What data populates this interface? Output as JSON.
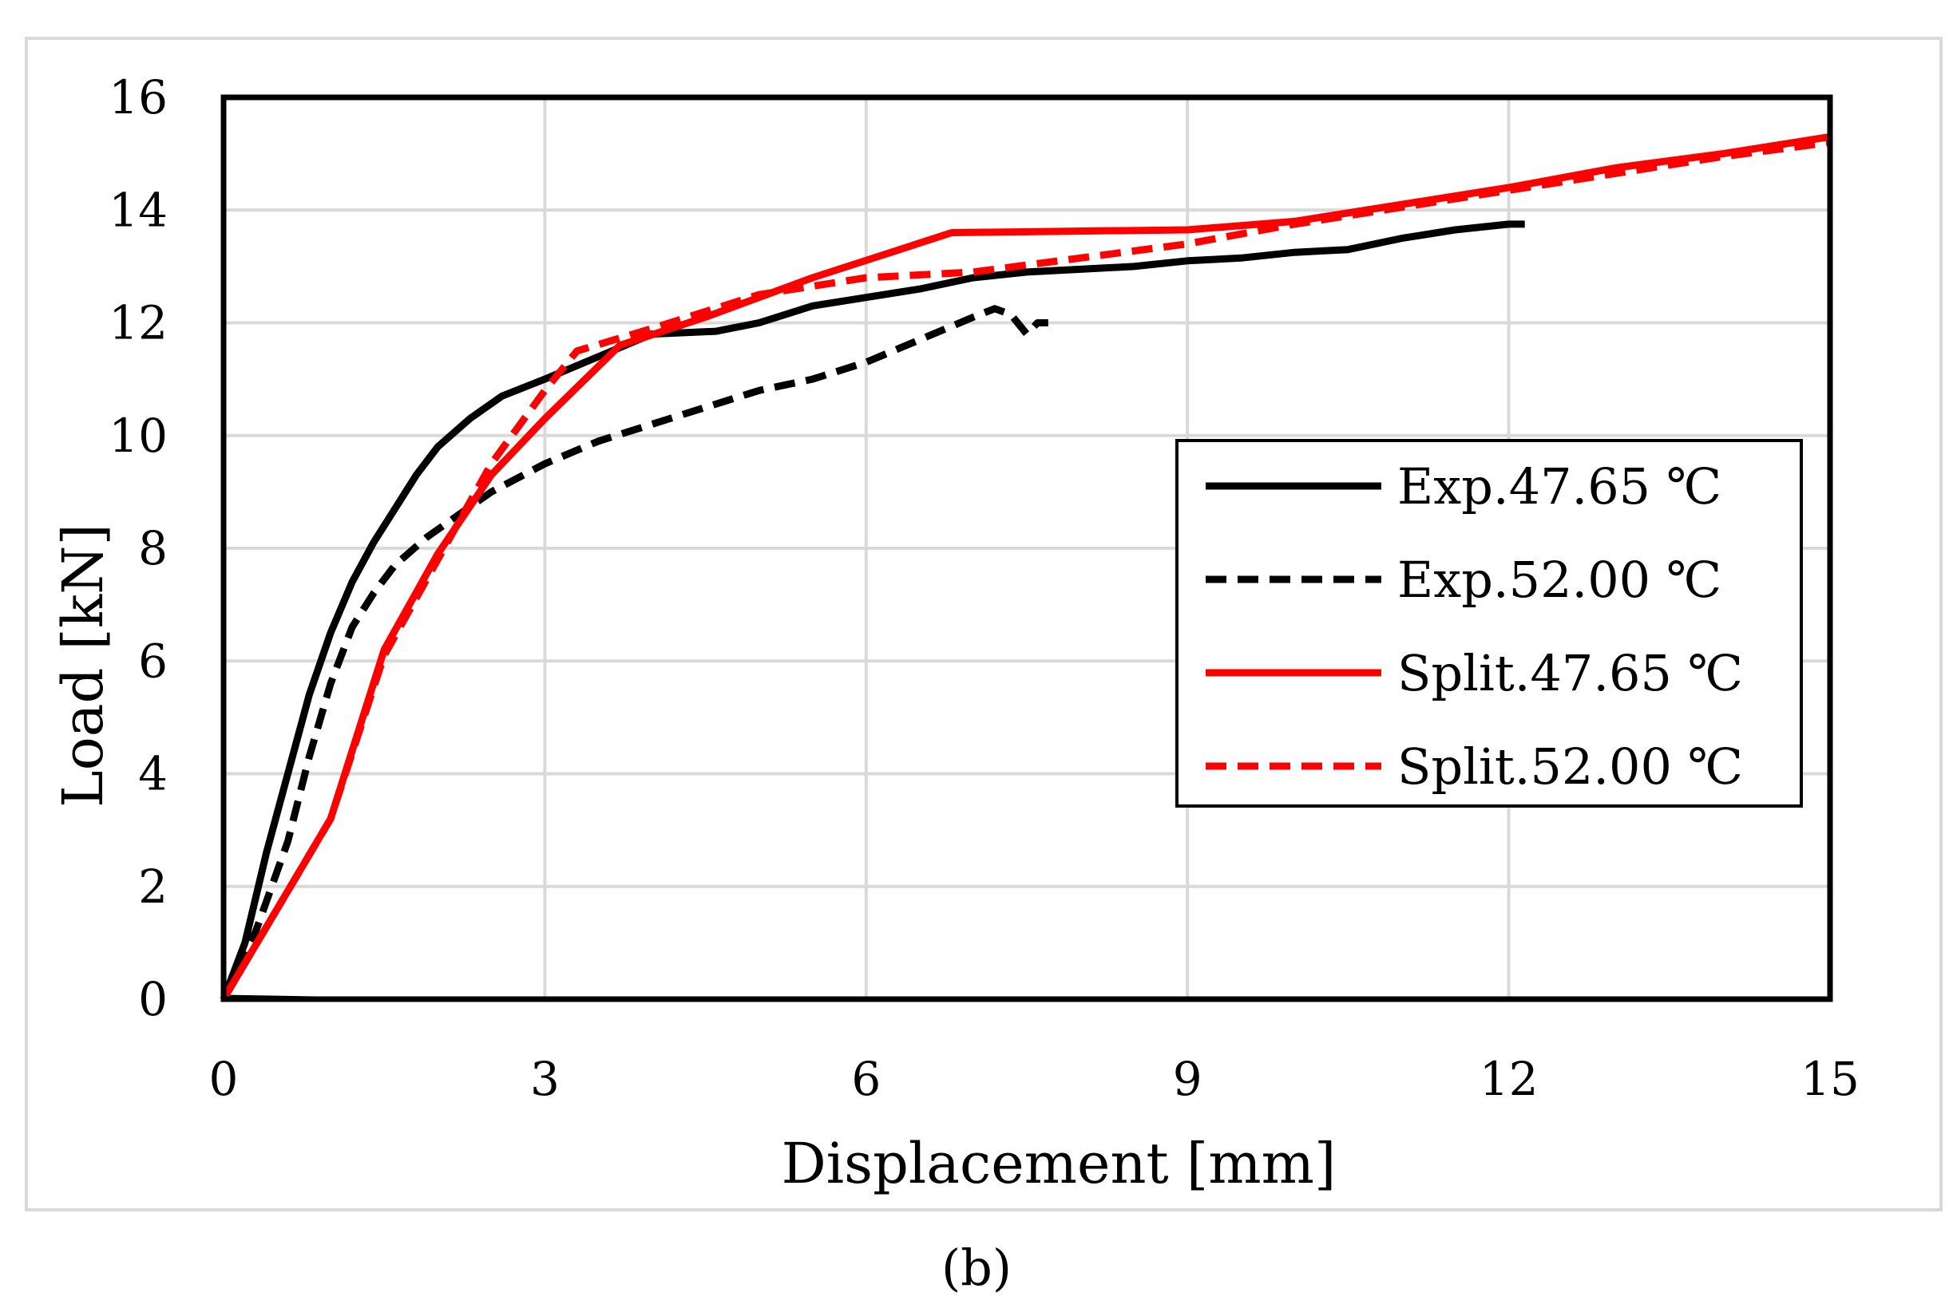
{
  "chart_data": {
    "type": "line",
    "title": "",
    "xlabel": "Displacement [mm]",
    "ylabel": "Load [kN]",
    "xlim": [
      0,
      15
    ],
    "ylim": [
      0,
      16
    ],
    "x_ticks": [
      0,
      3,
      6,
      9,
      12,
      15
    ],
    "y_ticks": [
      0,
      2,
      4,
      6,
      8,
      10,
      12,
      14,
      16
    ],
    "x_tick_labels": [
      "0",
      "3",
      "6",
      "9",
      "12",
      "15"
    ],
    "y_tick_labels": [
      "0",
      "2",
      "4",
      "6",
      "8",
      "10",
      "12",
      "14",
      "16"
    ],
    "grid": true,
    "legend_position": "right",
    "panel_label": "(b)",
    "series": [
      {
        "name": "Exp.47.65 ℃",
        "color": "#000000",
        "dash": "solid",
        "points": [
          [
            0,
            0
          ],
          [
            0.2,
            1.0
          ],
          [
            0.4,
            2.6
          ],
          [
            0.6,
            4.0
          ],
          [
            0.8,
            5.4
          ],
          [
            1.0,
            6.5
          ],
          [
            1.2,
            7.4
          ],
          [
            1.4,
            8.1
          ],
          [
            1.6,
            8.7
          ],
          [
            1.8,
            9.3
          ],
          [
            2.0,
            9.8
          ],
          [
            2.3,
            10.3
          ],
          [
            2.6,
            10.7
          ],
          [
            3.0,
            11.0
          ],
          [
            3.5,
            11.4
          ],
          [
            4.0,
            11.8
          ],
          [
            4.6,
            11.85
          ],
          [
            5.0,
            12.0
          ],
          [
            5.5,
            12.3
          ],
          [
            6.0,
            12.45
          ],
          [
            6.5,
            12.6
          ],
          [
            7.0,
            12.8
          ],
          [
            7.5,
            12.9
          ],
          [
            8.0,
            12.95
          ],
          [
            8.5,
            13.0
          ],
          [
            9.0,
            13.1
          ],
          [
            9.5,
            13.15
          ],
          [
            10.0,
            13.25
          ],
          [
            10.5,
            13.3
          ],
          [
            11.0,
            13.5
          ],
          [
            11.5,
            13.65
          ],
          [
            12.0,
            13.75
          ],
          [
            12.15,
            13.75
          ]
        ]
      },
      {
        "name": "Exp.52.00 ℃",
        "color": "#000000",
        "dash": "dashed",
        "points": [
          [
            0,
            0
          ],
          [
            0.3,
            1.2
          ],
          [
            0.6,
            2.8
          ],
          [
            0.8,
            4.3
          ],
          [
            1.0,
            5.6
          ],
          [
            1.2,
            6.6
          ],
          [
            1.4,
            7.2
          ],
          [
            1.6,
            7.7
          ],
          [
            1.9,
            8.2
          ],
          [
            2.2,
            8.6
          ],
          [
            2.5,
            9.0
          ],
          [
            2.8,
            9.3
          ],
          [
            3.0,
            9.5
          ],
          [
            3.5,
            9.9
          ],
          [
            4.0,
            10.2
          ],
          [
            4.5,
            10.5
          ],
          [
            5.0,
            10.8
          ],
          [
            5.5,
            11.0
          ],
          [
            6.0,
            11.3
          ],
          [
            6.5,
            11.7
          ],
          [
            7.0,
            12.1
          ],
          [
            7.2,
            12.25
          ],
          [
            7.35,
            12.15
          ],
          [
            7.5,
            11.8
          ],
          [
            7.6,
            12.0
          ],
          [
            7.7,
            12.0
          ]
        ]
      },
      {
        "name": "Split.47.65 ℃",
        "color": "#ff0000",
        "dash": "solid",
        "points": [
          [
            0,
            0
          ],
          [
            0.5,
            1.6
          ],
          [
            1.0,
            3.2
          ],
          [
            1.5,
            6.2
          ],
          [
            2.0,
            7.9
          ],
          [
            2.5,
            9.3
          ],
          [
            3.0,
            10.3
          ],
          [
            3.7,
            11.6
          ],
          [
            4.5,
            12.1
          ],
          [
            5.5,
            12.8
          ],
          [
            6.8,
            13.6
          ],
          [
            9.0,
            13.65
          ],
          [
            10.0,
            13.8
          ],
          [
            11.0,
            14.1
          ],
          [
            12.0,
            14.4
          ],
          [
            13.0,
            14.75
          ],
          [
            14.0,
            15.0
          ],
          [
            15.0,
            15.3
          ]
        ]
      },
      {
        "name": "Split.52.00 ℃",
        "color": "#ff0000",
        "dash": "dashed",
        "points": [
          [
            0,
            0
          ],
          [
            0.5,
            1.6
          ],
          [
            1.0,
            3.2
          ],
          [
            1.5,
            6.1
          ],
          [
            2.0,
            7.8
          ],
          [
            2.5,
            9.5
          ],
          [
            3.0,
            10.8
          ],
          [
            3.3,
            11.5
          ],
          [
            4.0,
            11.9
          ],
          [
            5.0,
            12.5
          ],
          [
            6.0,
            12.8
          ],
          [
            7.0,
            12.9
          ],
          [
            8.0,
            13.15
          ],
          [
            9.0,
            13.4
          ],
          [
            10.0,
            13.75
          ],
          [
            11.0,
            14.05
          ],
          [
            12.0,
            14.35
          ],
          [
            13.0,
            14.65
          ],
          [
            14.0,
            14.95
          ],
          [
            15.0,
            15.2
          ]
        ]
      }
    ]
  }
}
